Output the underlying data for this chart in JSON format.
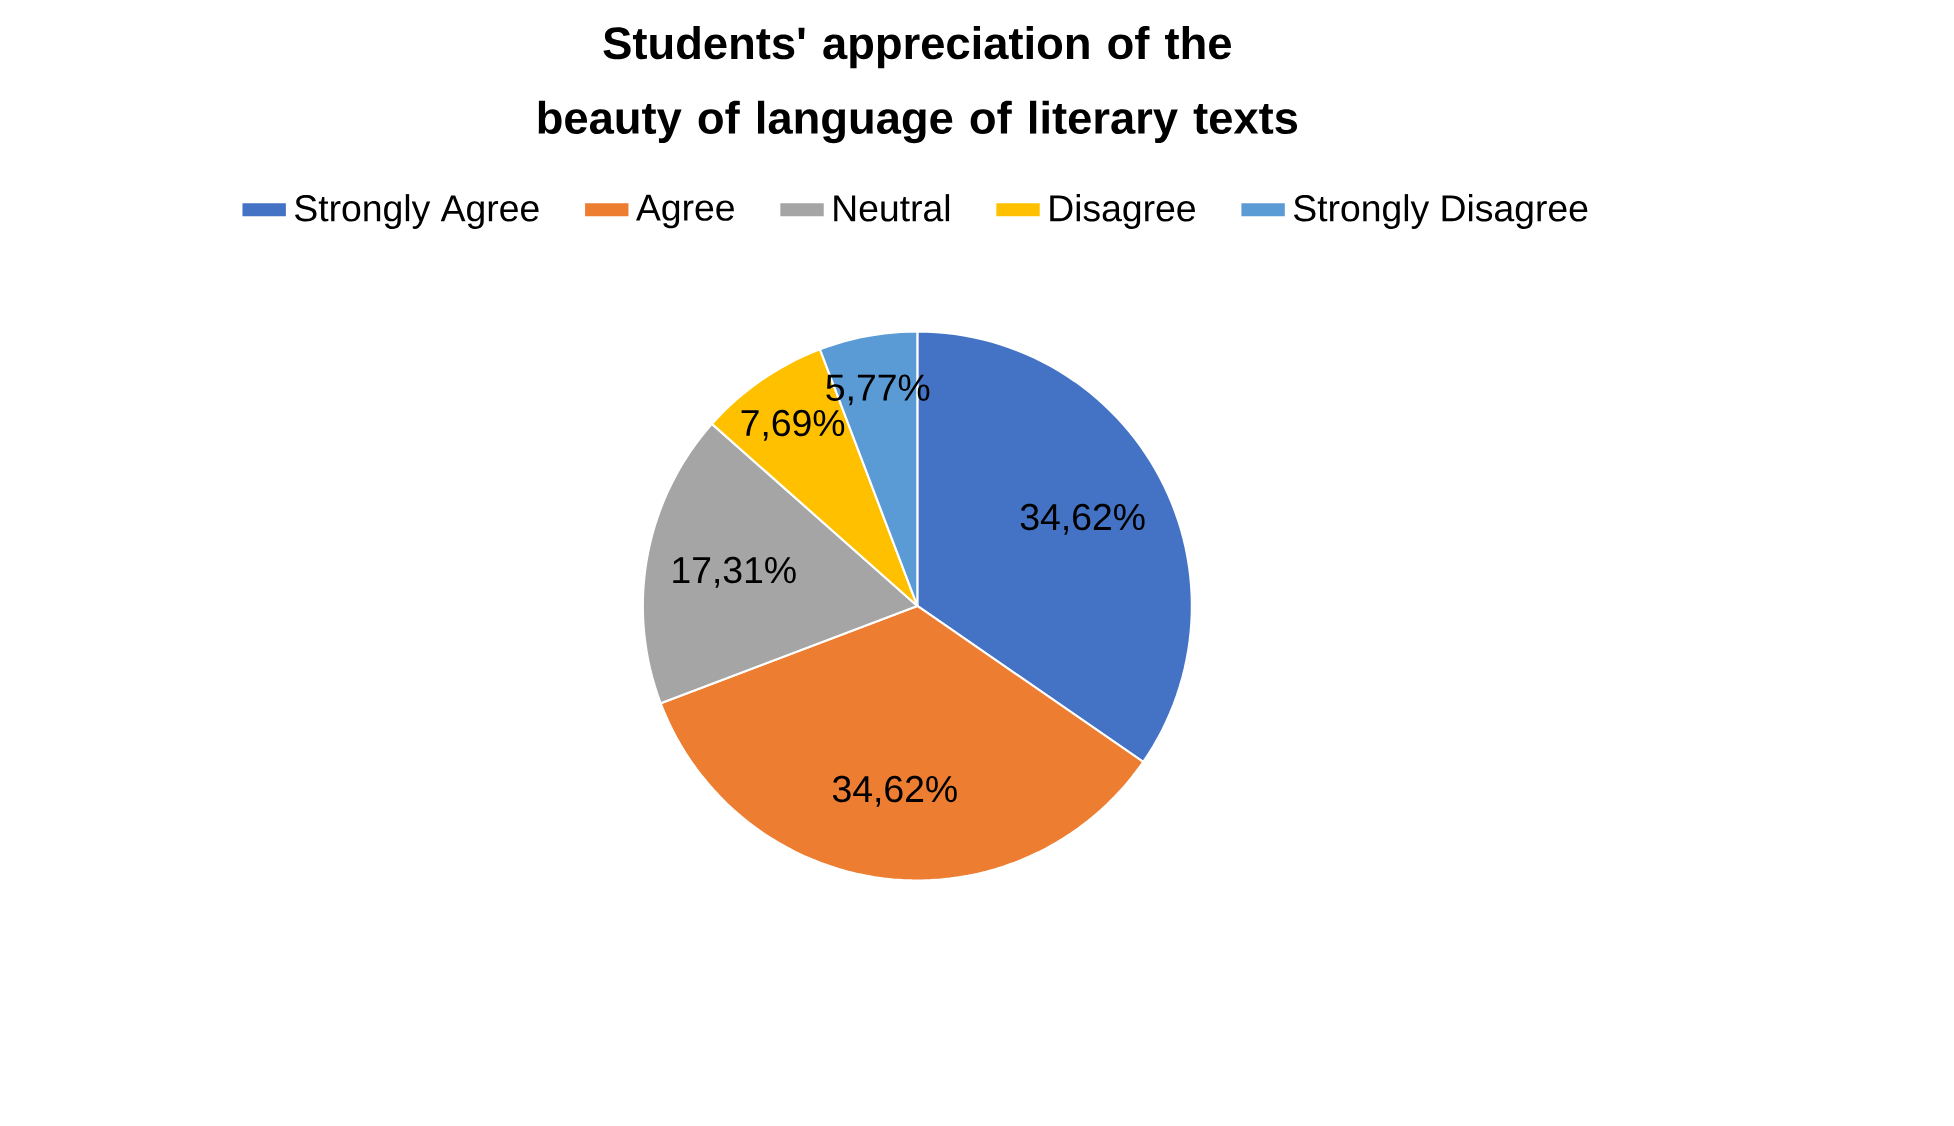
{
  "chart_data": {
    "type": "pie",
    "title": "Students' appreciation of the beauty of language of literary texts",
    "categories": [
      "Strongly Agree",
      "Agree",
      "Neutral",
      "Disagree",
      "Strongly Disagree"
    ],
    "values": [
      34.62,
      34.62,
      17.31,
      7.69,
      5.77
    ],
    "value_labels": [
      "34,62%",
      "34,62%",
      "17,31%",
      "7,69%",
      "5,77%"
    ],
    "colors": [
      "#4472c4",
      "#ed7d31",
      "#a5a5a5",
      "#ffc000",
      "#5b9bd5"
    ],
    "legend": "top"
  }
}
